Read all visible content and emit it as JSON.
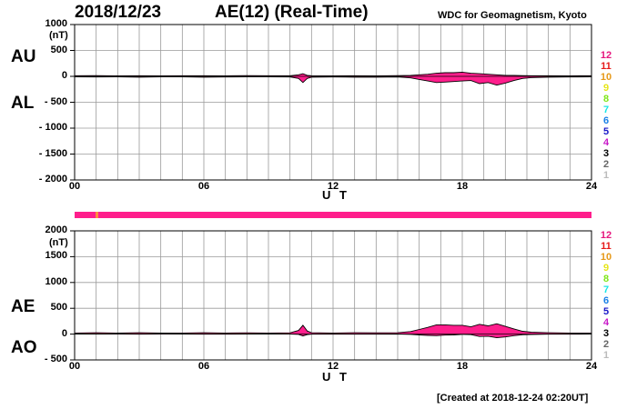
{
  "header": {
    "date": "2018/12/23",
    "title": "AE(12) (Real-Time)",
    "source": "WDC for Geomagnetism, Kyoto"
  },
  "footer": {
    "created": "[Created at 2018-12-24 02:20UT]"
  },
  "legend": {
    "stations": [
      "12",
      "11",
      "10",
      "9",
      "8",
      "7",
      "6",
      "5",
      "4",
      "3",
      "2",
      "1"
    ],
    "colors": [
      "#e6197f",
      "#e61919",
      "#e69919",
      "#e6e619",
      "#7fe619",
      "#19e6e6",
      "#1980e6",
      "#1919c8",
      "#c819c8",
      "#000000",
      "#666666",
      "#bbbbbb"
    ]
  },
  "colors": {
    "trace_fill": "#ff1e8c",
    "outline": "#000000",
    "grid": "#9a9a9a",
    "bar": "#ff1e8c",
    "bar_mark": "#ff8a3c"
  },
  "chart_data": [
    {
      "type": "area",
      "labels_left": [
        "AU",
        "AL"
      ],
      "unit": "(nT)",
      "xlabel": "U T",
      "xticks": [
        "00",
        "06",
        "12",
        "18",
        "24"
      ],
      "xlim": [
        0,
        24
      ],
      "ylim": [
        -2000,
        1000
      ],
      "yticks": [
        1000,
        500,
        0,
        -500,
        -1000,
        -1500,
        -2000
      ],
      "ytick_labels": [
        "1000",
        "500",
        "0",
        "- 500",
        "- 1000",
        "- 1500",
        "- 2000"
      ],
      "series": [
        {
          "x": [
            0,
            1,
            2,
            3,
            4,
            5,
            6,
            7,
            8,
            9,
            10,
            10.4,
            10.6,
            10.8,
            11,
            12,
            13,
            14,
            15,
            15.6,
            16,
            16.4,
            16.8,
            17.2,
            17.6,
            18,
            18.4,
            18.8,
            19.2,
            19.6,
            20,
            20.4,
            20.8,
            21.2,
            22,
            23,
            24
          ],
          "values": [
            12,
            14,
            10,
            12,
            10,
            12,
            12,
            10,
            14,
            12,
            12,
            30,
            50,
            20,
            12,
            10,
            12,
            10,
            14,
            20,
            30,
            40,
            60,
            70,
            70,
            80,
            60,
            50,
            40,
            30,
            20,
            20,
            14,
            12,
            12,
            10,
            12
          ]
        },
        {
          "x": [
            0,
            1,
            2,
            3,
            4,
            5,
            6,
            7,
            8,
            9,
            10,
            10.4,
            10.6,
            10.8,
            11,
            12,
            13,
            14,
            15,
            15.6,
            16,
            16.4,
            16.8,
            17.2,
            17.6,
            18,
            18.4,
            18.8,
            19.2,
            19.6,
            20,
            20.4,
            20.8,
            21.2,
            22,
            23,
            24
          ],
          "values": [
            -10,
            -12,
            -10,
            -15,
            -10,
            -10,
            -15,
            -12,
            -10,
            -10,
            -12,
            -40,
            -120,
            -40,
            -15,
            -12,
            -15,
            -15,
            -12,
            -30,
            -60,
            -90,
            -120,
            -110,
            -100,
            -90,
            -80,
            -140,
            -120,
            -170,
            -130,
            -80,
            -40,
            -25,
            -15,
            -12,
            -10
          ]
        }
      ]
    },
    {
      "type": "area",
      "labels_left": [
        "AE",
        "AO"
      ],
      "unit": "(nT)",
      "xlabel": "U T",
      "xticks": [
        "00",
        "06",
        "12",
        "18",
        "24"
      ],
      "xlim": [
        0,
        24
      ],
      "ylim": [
        -500,
        2000
      ],
      "yticks": [
        2000,
        1500,
        1000,
        500,
        0,
        -500
      ],
      "ytick_labels": [
        "2000",
        "1500",
        "1000",
        "500",
        "0",
        "- 500"
      ],
      "series": [
        {
          "x": [
            0,
            1,
            2,
            3,
            4,
            5,
            6,
            7,
            8,
            9,
            10,
            10.4,
            10.6,
            10.8,
            11,
            12,
            13,
            14,
            15,
            15.6,
            16,
            16.4,
            16.8,
            17.2,
            17.6,
            18,
            18.4,
            18.8,
            19.2,
            19.6,
            20,
            20.4,
            20.8,
            21.2,
            22,
            23,
            24
          ],
          "values": [
            22,
            26,
            20,
            27,
            20,
            22,
            27,
            22,
            24,
            22,
            24,
            70,
            170,
            60,
            27,
            22,
            27,
            25,
            26,
            50,
            90,
            130,
            180,
            180,
            170,
            170,
            140,
            190,
            160,
            200,
            150,
            100,
            54,
            37,
            27,
            22,
            22
          ]
        },
        {
          "x": [
            0,
            1,
            2,
            3,
            4,
            5,
            6,
            7,
            8,
            9,
            10,
            10.4,
            10.6,
            10.8,
            11,
            12,
            13,
            14,
            15,
            15.6,
            16,
            16.4,
            16.8,
            17.2,
            17.6,
            18,
            18.4,
            18.8,
            19.2,
            19.6,
            20,
            20.4,
            20.8,
            21.2,
            22,
            23,
            24
          ],
          "values": [
            1,
            1,
            0,
            -1,
            0,
            1,
            -1,
            -1,
            2,
            1,
            0,
            -5,
            -35,
            -10,
            -1,
            -1,
            -1,
            -2,
            1,
            -5,
            -15,
            -25,
            -30,
            -20,
            -15,
            -5,
            -10,
            -45,
            -40,
            -70,
            -55,
            -30,
            -13,
            -7,
            -2,
            -1,
            1
          ]
        }
      ]
    }
  ]
}
